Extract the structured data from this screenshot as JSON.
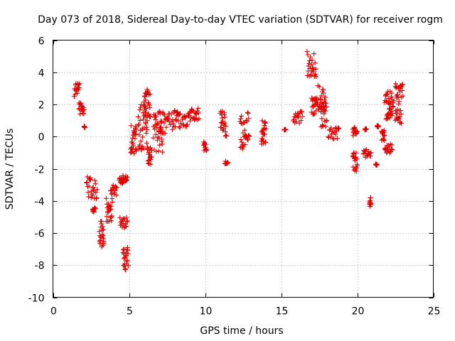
{
  "chart_data": {
    "type": "scatter",
    "title": "Day 073 of 2018, Sidereal Day-to-day VTEC variation (SDTVAR) for receiver rogm",
    "xlabel": "GPS time / hours",
    "ylabel": "SDTVAR / TECUs",
    "xlim": [
      0,
      25
    ],
    "ylim": [
      -10,
      6
    ],
    "xticks": [
      0,
      5,
      10,
      15,
      20,
      25
    ],
    "yticks": [
      -10,
      -8,
      -6,
      -4,
      -2,
      0,
      2,
      4,
      6
    ],
    "grid": true,
    "marker": "+",
    "marker_color": "#e00000",
    "series": [
      {
        "name": "SDTVAR",
        "clusters": [
          {
            "x": [
              1.4,
              1.75
            ],
            "y": [
              2.5,
              3.3
            ]
          },
          {
            "x": [
              1.7,
              2.05
            ],
            "y": [
              1.3,
              2.1
            ]
          },
          {
            "x": [
              2.05,
              2.1
            ],
            "y": [
              0.55,
              0.65
            ]
          },
          {
            "x": [
              2.2,
              2.9
            ],
            "y": [
              -3.9,
              -2.5
            ]
          },
          {
            "x": [
              2.6,
              2.8
            ],
            "y": [
              -4.7,
              -4.4
            ]
          },
          {
            "x": [
              3.05,
              3.35
            ],
            "y": [
              -6.9,
              -5.2
            ]
          },
          {
            "x": [
              3.5,
              3.9
            ],
            "y": [
              -5.3,
              -3.8
            ]
          },
          {
            "x": [
              3.8,
              4.2
            ],
            "y": [
              -3.7,
              -3.0
            ]
          },
          {
            "x": [
              4.35,
              4.6
            ],
            "y": [
              -3.0,
              -2.5
            ]
          },
          {
            "x": [
              4.4,
              4.9
            ],
            "y": [
              -5.7,
              -5.0
            ]
          },
          {
            "x": [
              4.6,
              4.95
            ],
            "y": [
              -8.3,
              -6.8
            ]
          },
          {
            "x": [
              4.6,
              4.9
            ],
            "y": [
              -2.8,
              -2.3
            ]
          },
          {
            "x": [
              5.1,
              5.5
            ],
            "y": [
              -1.2,
              0.7
            ]
          },
          {
            "x": [
              5.6,
              6.2
            ],
            "y": [
              -0.9,
              2.0
            ]
          },
          {
            "x": [
              6.0,
              6.4
            ],
            "y": [
              1.2,
              3.0
            ]
          },
          {
            "x": [
              6.2,
              6.5
            ],
            "y": [
              -1.8,
              -0.6
            ]
          },
          {
            "x": [
              6.6,
              7.2
            ],
            "y": [
              -1.0,
              1.5
            ]
          },
          {
            "x": [
              7.0,
              7.7
            ],
            "y": [
              0.2,
              1.6
            ]
          },
          {
            "x": [
              7.8,
              8.4
            ],
            "y": [
              0.4,
              1.7
            ]
          },
          {
            "x": [
              8.5,
              9.1
            ],
            "y": [
              0.6,
              1.6
            ]
          },
          {
            "x": [
              9.1,
              9.6
            ],
            "y": [
              1.0,
              1.8
            ]
          },
          {
            "x": [
              9.9,
              10.1
            ],
            "y": [
              -0.9,
              -0.3
            ]
          },
          {
            "x": [
              11.0,
              11.4
            ],
            "y": [
              0.0,
              1.6
            ]
          },
          {
            "x": [
              11.3,
              11.5
            ],
            "y": [
              -1.7,
              -1.5
            ]
          },
          {
            "x": [
              12.3,
              12.9
            ],
            "y": [
              -0.8,
              1.7
            ]
          },
          {
            "x": [
              13.7,
              14.0
            ],
            "y": [
              -0.5,
              1.0
            ]
          },
          {
            "x": [
              15.2,
              15.3
            ],
            "y": [
              0.4,
              0.5
            ]
          },
          {
            "x": [
              15.8,
              16.4
            ],
            "y": [
              0.8,
              1.6
            ]
          },
          {
            "x": [
              16.7,
              17.3
            ],
            "y": [
              3.7,
              5.3
            ]
          },
          {
            "x": [
              17.0,
              17.3
            ],
            "y": [
              1.3,
              2.4
            ]
          },
          {
            "x": [
              17.3,
              17.9
            ],
            "y": [
              1.6,
              3.2
            ]
          },
          {
            "x": [
              17.6,
              18.0
            ],
            "y": [
              0.6,
              2.1
            ]
          },
          {
            "x": [
              18.1,
              18.8
            ],
            "y": [
              -0.2,
              0.6
            ]
          },
          {
            "x": [
              19.7,
              20.0
            ],
            "y": [
              -2.2,
              -1.0
            ]
          },
          {
            "x": [
              19.7,
              20.0
            ],
            "y": [
              0.0,
              0.6
            ]
          },
          {
            "x": [
              20.4,
              20.9
            ],
            "y": [
              -1.3,
              -0.8
            ]
          },
          {
            "x": [
              20.5,
              20.6
            ],
            "y": [
              0.4,
              0.5
            ]
          },
          {
            "x": [
              20.8,
              20.9
            ],
            "y": [
              -4.4,
              -3.8
            ]
          },
          {
            "x": [
              21.2,
              21.3
            ],
            "y": [
              -1.8,
              -1.7
            ]
          },
          {
            "x": [
              21.3,
              21.4
            ],
            "y": [
              0.6,
              0.7
            ]
          },
          {
            "x": [
              21.6,
              21.8
            ],
            "y": [
              -0.3,
              0.4
            ]
          },
          {
            "x": [
              21.8,
              22.3
            ],
            "y": [
              -1.1,
              -0.4
            ]
          },
          {
            "x": [
              21.8,
              22.4
            ],
            "y": [
              1.8,
              3.0
            ]
          },
          {
            "x": [
              21.9,
              22.3
            ],
            "y": [
              1.0,
              1.8
            ]
          },
          {
            "x": [
              22.5,
              22.9
            ],
            "y": [
              0.8,
              1.7
            ]
          },
          {
            "x": [
              22.5,
              23.0
            ],
            "y": [
              2.0,
              3.3
            ]
          }
        ]
      }
    ]
  }
}
